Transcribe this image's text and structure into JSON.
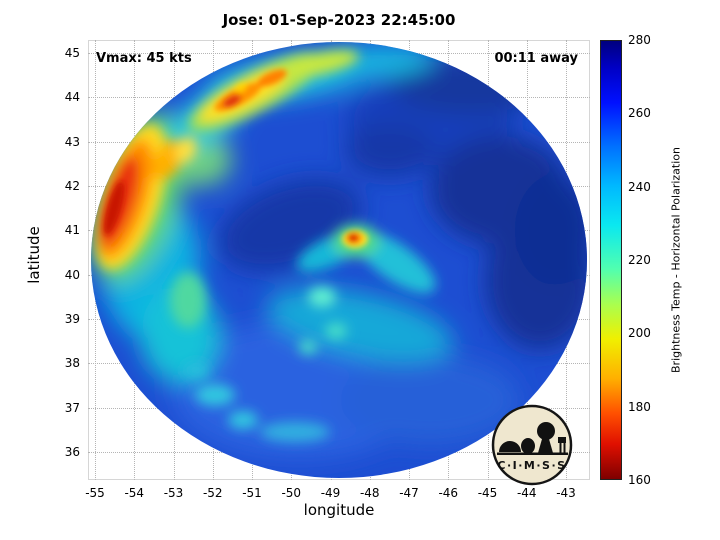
{
  "title": "Jose: 01-Sep-2023 22:45:00",
  "overlay": {
    "vmax": "Vmax: 45 kts",
    "eta": "00:11 away"
  },
  "axes": {
    "xlabel": "longitude",
    "ylabel": "latitude",
    "x_tick_labels": [
      "-55",
      "-54",
      "-53",
      "-52",
      "-51",
      "-50",
      "-49",
      "-48",
      "-47",
      "-46",
      "-45",
      "-44",
      "-43"
    ],
    "y_tick_labels": [
      "45",
      "44",
      "43",
      "42",
      "41",
      "40",
      "39",
      "38",
      "37",
      "36"
    ]
  },
  "colorbar": {
    "label": "Brightness Temp - Horizontal Polarization",
    "tick_labels": [
      "280",
      "260",
      "240",
      "220",
      "200",
      "180",
      "160"
    ]
  },
  "logo": {
    "text": "C·I·M·S·S"
  },
  "chart_data": {
    "type": "heatmap",
    "title": "Jose: 01-Sep-2023 22:45:00",
    "xlabel": "longitude",
    "ylabel": "latitude",
    "x_ticks": [
      -55,
      -54,
      -53,
      -52,
      -51,
      -50,
      -49,
      -48,
      -47,
      -46,
      -45,
      -44,
      -43
    ],
    "y_ticks": [
      45,
      44,
      43,
      42,
      41,
      40,
      39,
      38,
      37,
      36
    ],
    "xlim": [
      -55.2,
      -42.8
    ],
    "ylim": [
      35.6,
      45.3
    ],
    "grid": true,
    "colorbar": {
      "label": "Brightness Temp - Horizontal Polarization",
      "min": 160,
      "max": 280,
      "ticks": [
        160,
        180,
        200,
        220,
        240,
        260,
        280
      ],
      "colormap": "jet reversed (160 K = dark red, 280 K = dark blue)"
    },
    "annotations": [
      {
        "text": "Vmax: 45 kts",
        "position": "top-left"
      },
      {
        "text": "00:11 away",
        "position": "top-right"
      }
    ],
    "swath": {
      "shape": "circular",
      "center_lon": -48.9,
      "center_lat": 40.6,
      "radius_deg": 6.3
    },
    "features": [
      {
        "desc": "elongated warm band, Tb ~165-200 K (red/orange core, yellow-green fringe)",
        "lon": -54.2,
        "lat": 41.8
      },
      {
        "desc": "warm arc along NW swath edge, Tb ~180-210 K",
        "lon": -51.3,
        "lat": 44.4
      },
      {
        "desc": "small warm spot near storm center, Tb ~165-200 K",
        "lon": -48.4,
        "lat": 40.8
      },
      {
        "desc": "cyan/green spiral rainbands, Tb ~220-240 K",
        "lon": -50.5,
        "lat": 40.0
      },
      {
        "desc": "cold dark-blue cloud shield, Tb ~260-275 K",
        "lon": -46.5,
        "lat": 42.8
      },
      {
        "desc": "background ocean field, Tb ~250-260 K (medium blue)",
        "lon": -48.0,
        "lat": 38.0
      }
    ]
  }
}
